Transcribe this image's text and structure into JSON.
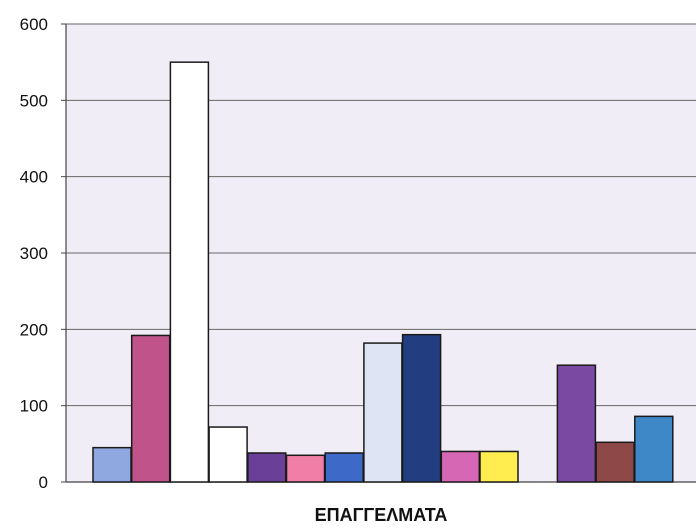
{
  "chart_data": {
    "type": "bar",
    "title": "",
    "xlabel": "ΕΠΑΓΓΕΛΜΑΤΑ",
    "ylabel": "",
    "ylim": [
      0,
      600
    ],
    "yticks": [
      0,
      100,
      200,
      300,
      400,
      500,
      600
    ],
    "grid": true,
    "legend": "none",
    "plot_background": "#f1edf6",
    "gridline_color": "#666666",
    "bars": [
      {
        "value": 45,
        "color": "#8fa8e0"
      },
      {
        "value": 192,
        "color": "#c0548a"
      },
      {
        "value": 550,
        "color": "#ffffff"
      },
      {
        "value": 72,
        "color": "#ffffff"
      },
      {
        "value": 38,
        "color": "#6a3f98"
      },
      {
        "value": 35,
        "color": "#f07ea6"
      },
      {
        "value": 38,
        "color": "#3d6ac8"
      },
      {
        "value": 182,
        "color": "#dfe4f5"
      },
      {
        "value": 193,
        "color": "#233e80"
      },
      {
        "value": 40,
        "color": "#d667b5"
      },
      {
        "value": 40,
        "color": "#ffec4f"
      },
      {
        "value": null,
        "color": "#ffffff"
      },
      {
        "value": 153,
        "color": "#7a4aa3"
      },
      {
        "value": 52,
        "color": "#8f4848"
      },
      {
        "value": 86,
        "color": "#3f88c8"
      }
    ]
  }
}
